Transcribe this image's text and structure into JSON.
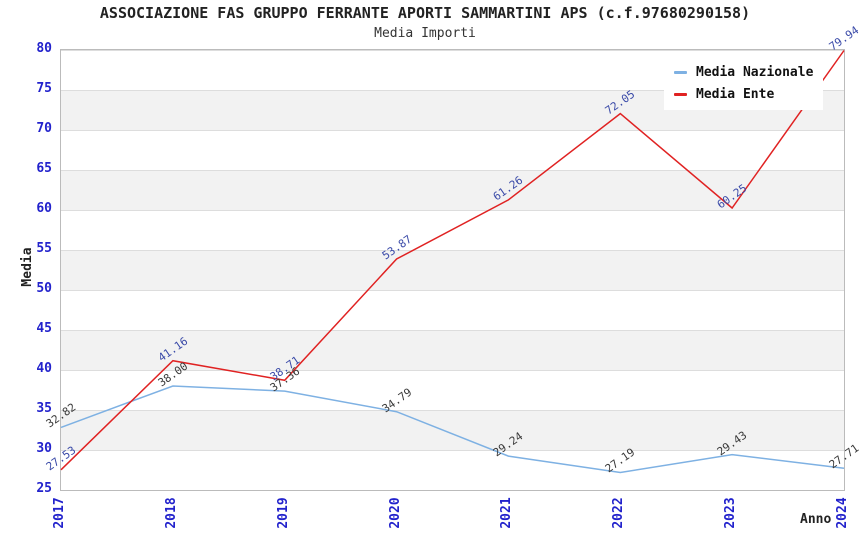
{
  "header": {
    "title": "ASSOCIAZIONE FAS GRUPPO FERRANTE APORTI SAMMARTINI APS (c.f.97680290158)",
    "subtitle": "Media Importi"
  },
  "chart_data": {
    "type": "line",
    "x": [
      "2017",
      "2018",
      "2019",
      "2020",
      "2021",
      "2022",
      "2023",
      "2024"
    ],
    "series": [
      {
        "name": "Media Nazionale",
        "color": "#7eb1e3",
        "label_color": "#3a3a3a",
        "values": [
          32.82,
          38.0,
          37.36,
          34.79,
          29.24,
          27.19,
          29.43,
          27.71
        ]
      },
      {
        "name": "Media Ente",
        "color": "#e02222",
        "label_color": "#3a4aa8",
        "values": [
          27.53,
          41.16,
          38.71,
          53.87,
          61.26,
          72.05,
          60.25,
          79.94
        ]
      }
    ],
    "ylabel": "Media",
    "xlabel": "Anno",
    "ylim": [
      25,
      80
    ],
    "ytick_step": 5,
    "value_label_decimals": 2,
    "value_label_rotation_deg": -35,
    "grid": "horizontal-bands",
    "legend_position": "top-right",
    "colors": {
      "axis_tick_label": "#2222cc",
      "band_fill": "#f2f2f2",
      "grid_line": "#dddddd",
      "spine": "#bbbbbb"
    }
  }
}
